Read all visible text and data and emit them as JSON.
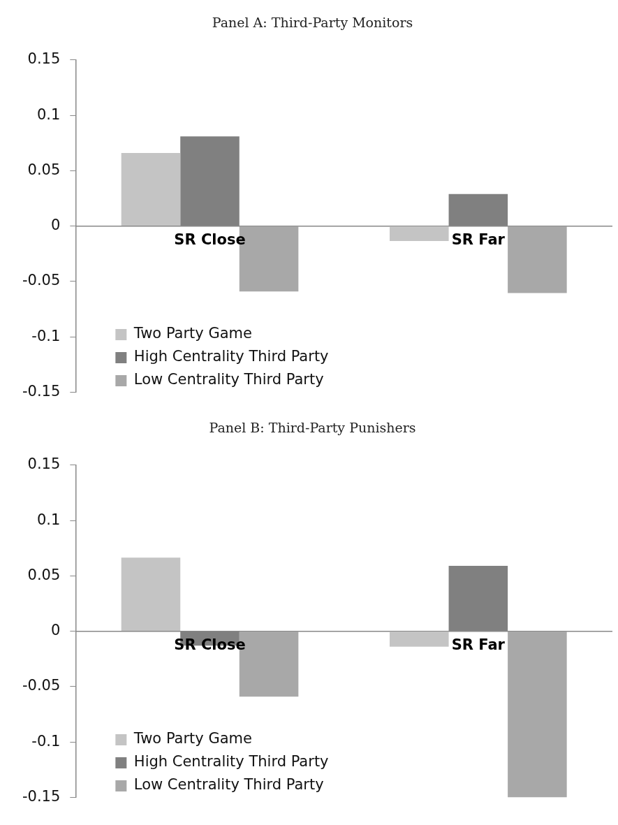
{
  "chart_data": [
    {
      "type": "bar",
      "title": "Panel A: Third-Party Monitors",
      "categories": [
        "SR Close",
        "SR Far"
      ],
      "ylim": [
        -0.15,
        0.15
      ],
      "yticks": [
        -0.15,
        -0.1,
        -0.05,
        0,
        0.05,
        0.1,
        0.15
      ],
      "grid": false,
      "legend": "bottom left",
      "series": [
        {
          "name": "Two Party Game",
          "color": "#c4c4c4",
          "values": [
            0.066,
            -0.0135
          ]
        },
        {
          "name": "High Centrality Third Party",
          "color": "#808080",
          "values": [
            0.081,
            0.029
          ]
        },
        {
          "name": "Low Centrality Third Party",
          "color": "#a8a8a8",
          "values": [
            -0.059,
            -0.0605
          ]
        }
      ]
    },
    {
      "type": "bar",
      "title": "Panel B: Third-Party Punishers",
      "categories": [
        "SR Close",
        "SR Far"
      ],
      "ylim": [
        -0.15,
        0.15
      ],
      "yticks": [
        -0.15,
        -0.1,
        -0.05,
        0,
        0.05,
        0.1,
        0.15
      ],
      "grid": false,
      "legend": "bottom left",
      "series": [
        {
          "name": "Two Party Game",
          "color": "#c4c4c4",
          "values": [
            0.0665,
            -0.014
          ]
        },
        {
          "name": "High Centrality Third Party",
          "color": "#808080",
          "values": [
            -0.013,
            0.059
          ]
        },
        {
          "name": "Low Centrality Third Party",
          "color": "#a8a8a8",
          "values": [
            -0.059,
            -0.15
          ]
        }
      ]
    }
  ]
}
